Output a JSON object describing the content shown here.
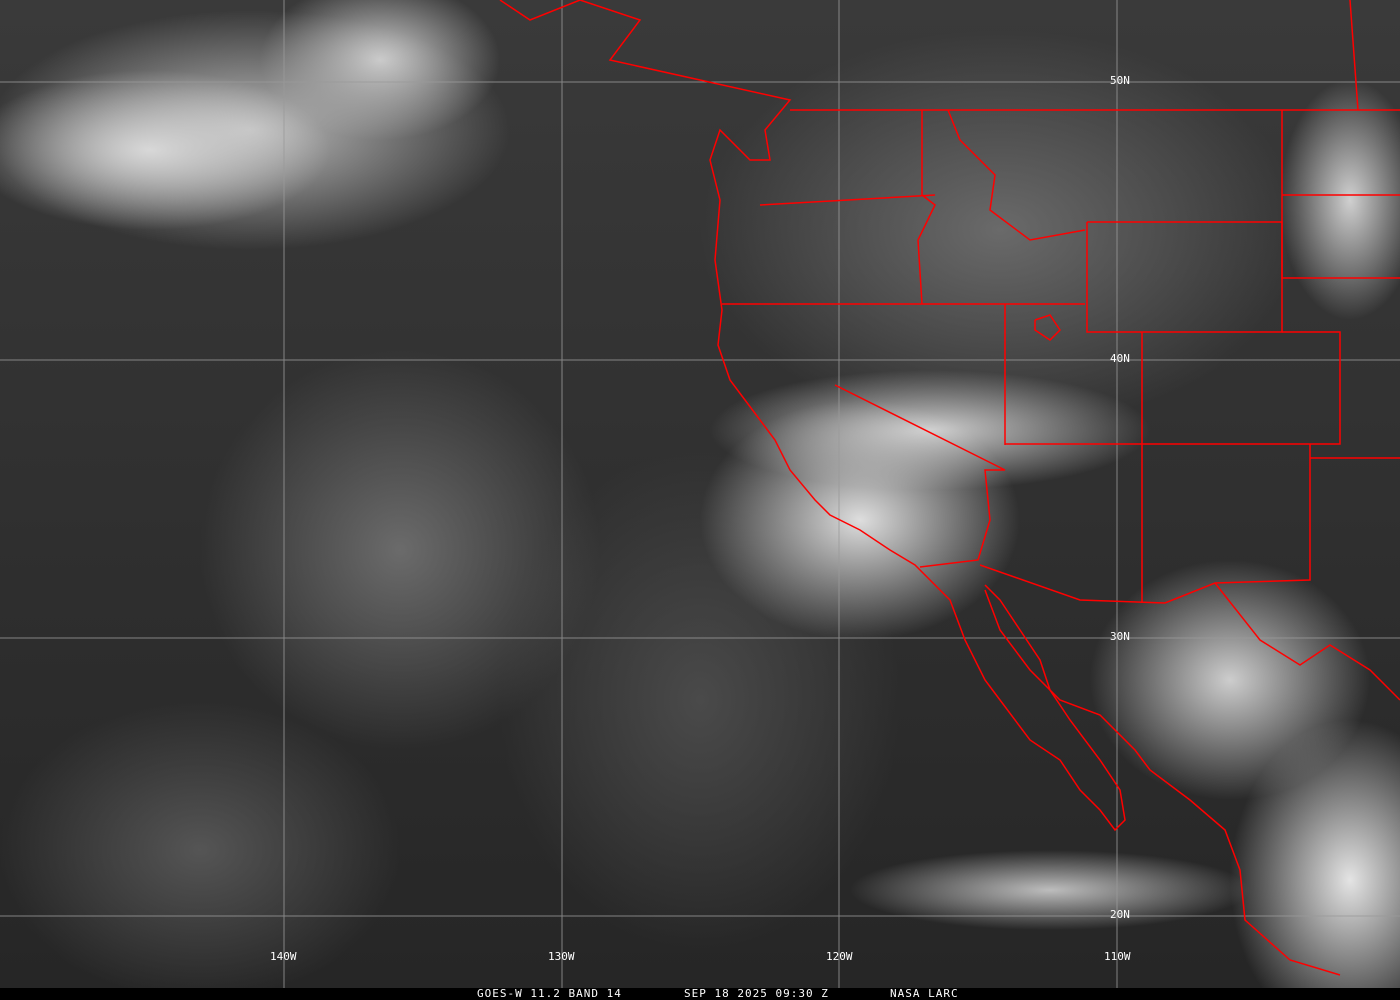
{
  "image": {
    "type": "satellite-infrared",
    "palette": "grayscale",
    "border_color": "#ff0000",
    "grid_color": "#9a9a9a"
  },
  "longitude_labels": [
    "140W",
    "130W",
    "120W",
    "110W"
  ],
  "latitude_labels": [
    "50N",
    "40N",
    "30N",
    "20N"
  ],
  "caption": {
    "product": "GOES-W 11.2 BAND 14",
    "datetime": "SEP 18 2025 09:30 Z",
    "source": "NASA LARC"
  }
}
